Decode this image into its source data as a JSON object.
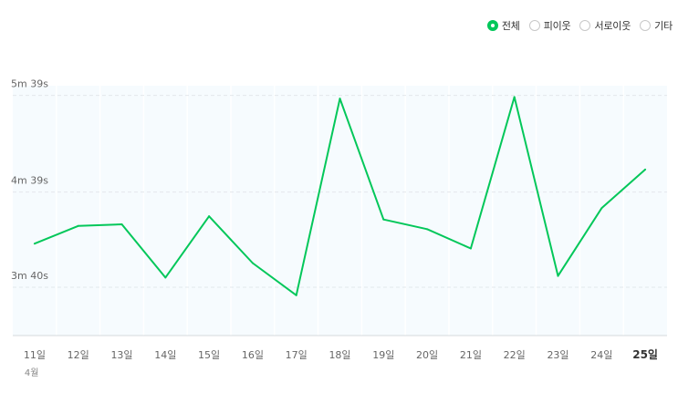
{
  "legend": {
    "items": [
      {
        "label": "전체",
        "selected": true
      },
      {
        "label": "피이웃",
        "selected": false
      },
      {
        "label": "서로이웃",
        "selected": false
      },
      {
        "label": "기타",
        "selected": false
      }
    ]
  },
  "chart_data": {
    "type": "line",
    "x": [
      "11일",
      "12일",
      "13일",
      "14일",
      "15일",
      "16일",
      "17일",
      "18일",
      "19일",
      "20일",
      "21일",
      "22일",
      "23일",
      "24일",
      "25일"
    ],
    "month_label": "4월",
    "series": [
      {
        "values": [
          247,
          258,
          259,
          226,
          264,
          235,
          215,
          337,
          262,
          256,
          244,
          338,
          227,
          269,
          293
        ],
        "color": "#03c75a"
      }
    ],
    "yticks": [
      {
        "value": 220,
        "label": "3m 40s"
      },
      {
        "value": 279,
        "label": "4m 39s"
      },
      {
        "value": 339,
        "label": "5m 39s"
      }
    ],
    "ylim": [
      190,
      345
    ],
    "highlight_last": true,
    "grid": true,
    "legend_position": "top-right"
  }
}
